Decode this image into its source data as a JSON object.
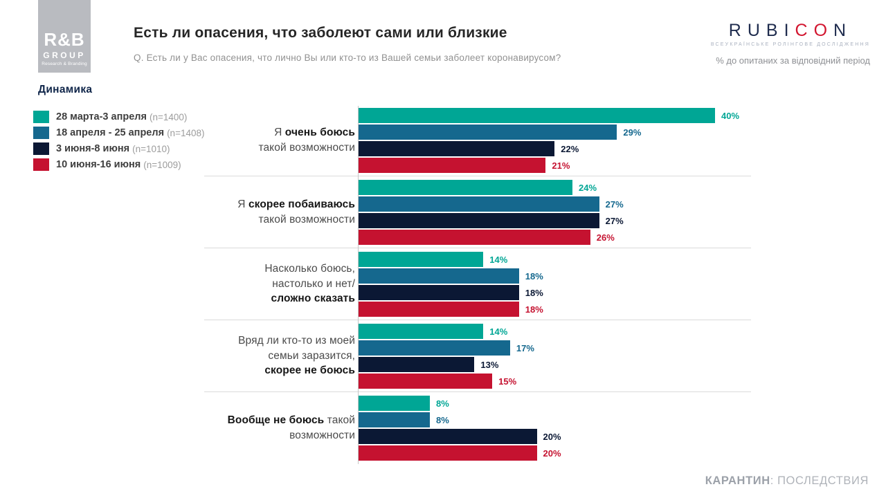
{
  "header": {
    "title": "Есть ли опасения, что заболеют сами или близкие",
    "question": "Q. Есть ли у Вас опасения, что лично Вы или кто-то из Вашей семьи заболеет коронавирусом?",
    "pct_note": "% до опитаних за відповідний період",
    "rb_logo": {
      "main": "R&B",
      "group": "GROUP",
      "sub": "Research & Branding"
    },
    "rubicon_logo": {
      "part1": "RUBI",
      "part2": "CO",
      "part3": "N",
      "tagline": "ВСЕУКРАЇНСЬКЕ РОЛІНГОВЕ ДОСЛІДЖЕННЯ"
    }
  },
  "section_label": "Динамика",
  "legend": [
    {
      "label": "28 марта-3 апреля ",
      "n": "(n=1400)",
      "color": "#00a695"
    },
    {
      "label": "18 апреля - 25 апреля ",
      "n": "(n=1408)",
      "color": "#15688e"
    },
    {
      "label": "3 июня-8 июня ",
      "n": "(n=1010)",
      "color": "#0b1834"
    },
    {
      "label": "10 июня-16 июня ",
      "n": "(n=1009)",
      "color": "#c51230"
    }
  ],
  "chart_data": {
    "type": "bar",
    "orientation": "horizontal",
    "unit": "%",
    "value_suffix": "%",
    "xlim": [
      0,
      44
    ],
    "grid": false,
    "legend_position": "top-left",
    "categories": [
      "Я очень боюсь такой возможности",
      "Я скорее побаиваюсь такой возможности",
      "Насколько боюсь, настолько и нет/ сложно сказать",
      "Вряд ли кто-то из моей семьи заразится, скорее не боюсь",
      "Вообще не боюсь такой возможности"
    ],
    "categories_rich": [
      {
        "lines": [
          [
            {
              "t": "Я ",
              "b": false
            },
            {
              "t": "очень боюсь",
              "b": true
            }
          ],
          [
            {
              "t": "такой возможности",
              "b": false
            }
          ]
        ]
      },
      {
        "lines": [
          [
            {
              "t": "Я ",
              "b": false
            },
            {
              "t": "скорее побаиваюсь",
              "b": true
            }
          ],
          [
            {
              "t": "такой возможности",
              "b": false
            }
          ]
        ]
      },
      {
        "lines": [
          [
            {
              "t": "Насколько боюсь,",
              "b": false
            }
          ],
          [
            {
              "t": "настолько и нет/",
              "b": false
            }
          ],
          [
            {
              "t": "сложно сказать",
              "b": true
            }
          ]
        ]
      },
      {
        "lines": [
          [
            {
              "t": "Вряд ли кто-то из моей",
              "b": false
            }
          ],
          [
            {
              "t": "семьи заразится,",
              "b": false
            }
          ],
          [
            {
              "t": "скорее не боюсь",
              "b": true
            }
          ]
        ]
      },
      {
        "lines": [
          [
            {
              "t": "Вообще не боюсь",
              "b": true
            },
            {
              "t": " такой",
              "b": false
            }
          ],
          [
            {
              "t": "возможности",
              "b": false
            }
          ]
        ]
      }
    ],
    "series": [
      {
        "name": "28 марта-3 апреля",
        "n": 1400,
        "color": "#00a695",
        "values": [
          40,
          24,
          14,
          14,
          8
        ]
      },
      {
        "name": "18 апреля - 25 апреля",
        "n": 1408,
        "color": "#15688e",
        "values": [
          29,
          27,
          18,
          17,
          8
        ]
      },
      {
        "name": "3 июня-8 июня",
        "n": 1010,
        "color": "#0b1834",
        "values": [
          22,
          27,
          18,
          13,
          20
        ]
      },
      {
        "name": "10 июня-16 июня",
        "n": 1009,
        "color": "#c51230",
        "values": [
          21,
          26,
          18,
          15,
          20
        ]
      }
    ]
  },
  "footer": {
    "bold": "КАРАНТИН",
    "rest": ": ПОСЛЕДСТВИЯ"
  }
}
